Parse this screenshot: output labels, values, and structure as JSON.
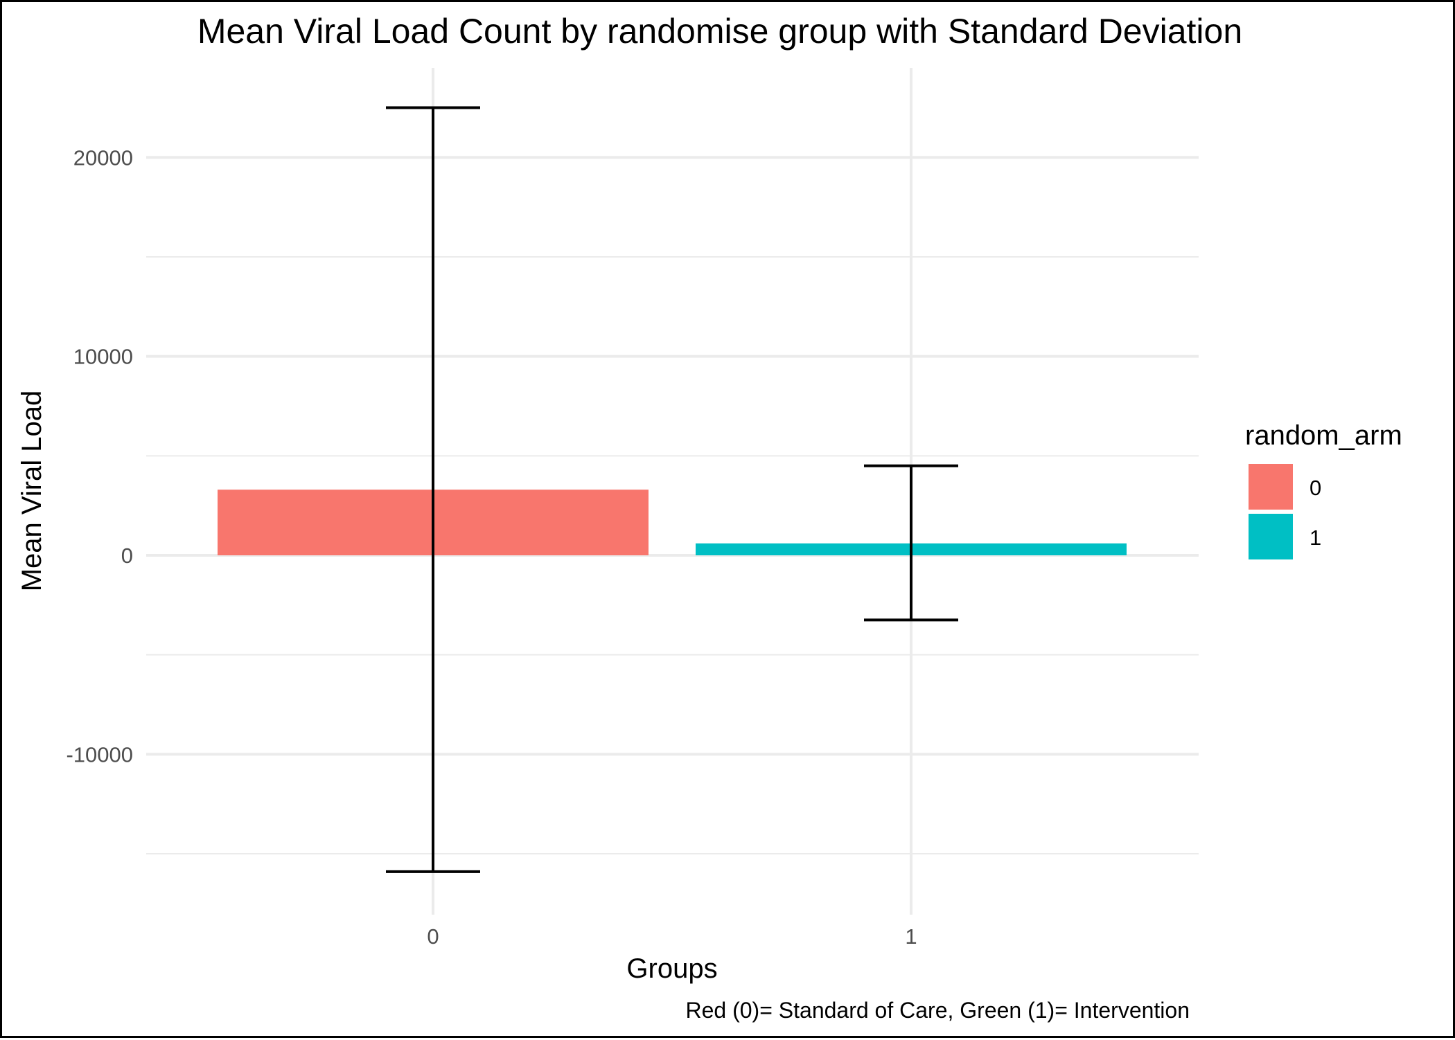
{
  "chart_data": {
    "type": "bar",
    "title": "Mean Viral Load Count by randomise group with Standard Deviation",
    "xlabel": "Groups",
    "ylabel": "Mean Viral Load",
    "caption": "Red (0)= Standard of Care, Green (1)= Intervention",
    "categories": [
      "0",
      "1"
    ],
    "values": [
      3300,
      600
    ],
    "error_lower": [
      -15900,
      -3250
    ],
    "error_upper": [
      22500,
      4500
    ],
    "colors": [
      "#F8766D",
      "#00BFC4"
    ],
    "ylim": [
      -16400,
      24400
    ],
    "yticks": [
      -10000,
      0,
      10000,
      20000
    ],
    "ytick_labels": [
      "-10000",
      "0",
      "10000",
      "20000"
    ],
    "grid": true,
    "legend": {
      "title": "random_arm",
      "position": "right",
      "items": [
        {
          "label": "0",
          "color": "#F8766D"
        },
        {
          "label": "1",
          "color": "#00BFC4"
        }
      ]
    }
  }
}
